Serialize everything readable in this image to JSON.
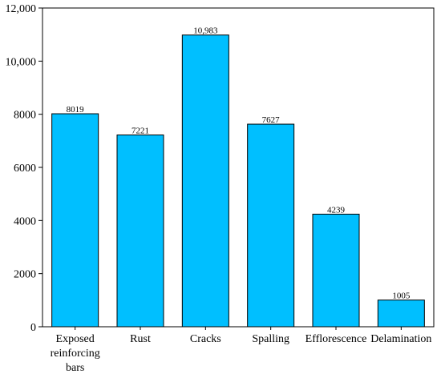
{
  "chart_data": {
    "type": "bar",
    "categories": [
      [
        "Exposed",
        "reinforcing",
        "bars"
      ],
      [
        "Rust"
      ],
      [
        "Cracks"
      ],
      [
        "Spalling"
      ],
      [
        "Efflorescence"
      ],
      [
        "Delamination"
      ]
    ],
    "values": [
      8019,
      7221,
      10983,
      7627,
      4239,
      1005
    ],
    "data_labels": [
      "8019",
      "7221",
      "10,983",
      "7627",
      "4239",
      "1005"
    ],
    "y_ticks": [
      0,
      2000,
      4000,
      6000,
      8000,
      10000,
      12000
    ],
    "y_tick_labels": [
      "0",
      "2000",
      "4000",
      "6000",
      "8000",
      "10,000",
      "12,000"
    ],
    "ylim": [
      0,
      12000
    ],
    "title": "",
    "xlabel": "",
    "ylabel": "",
    "grid": false,
    "legend": "none",
    "bar_color": "#00BFFF",
    "bar_edge_color": "#000000"
  }
}
